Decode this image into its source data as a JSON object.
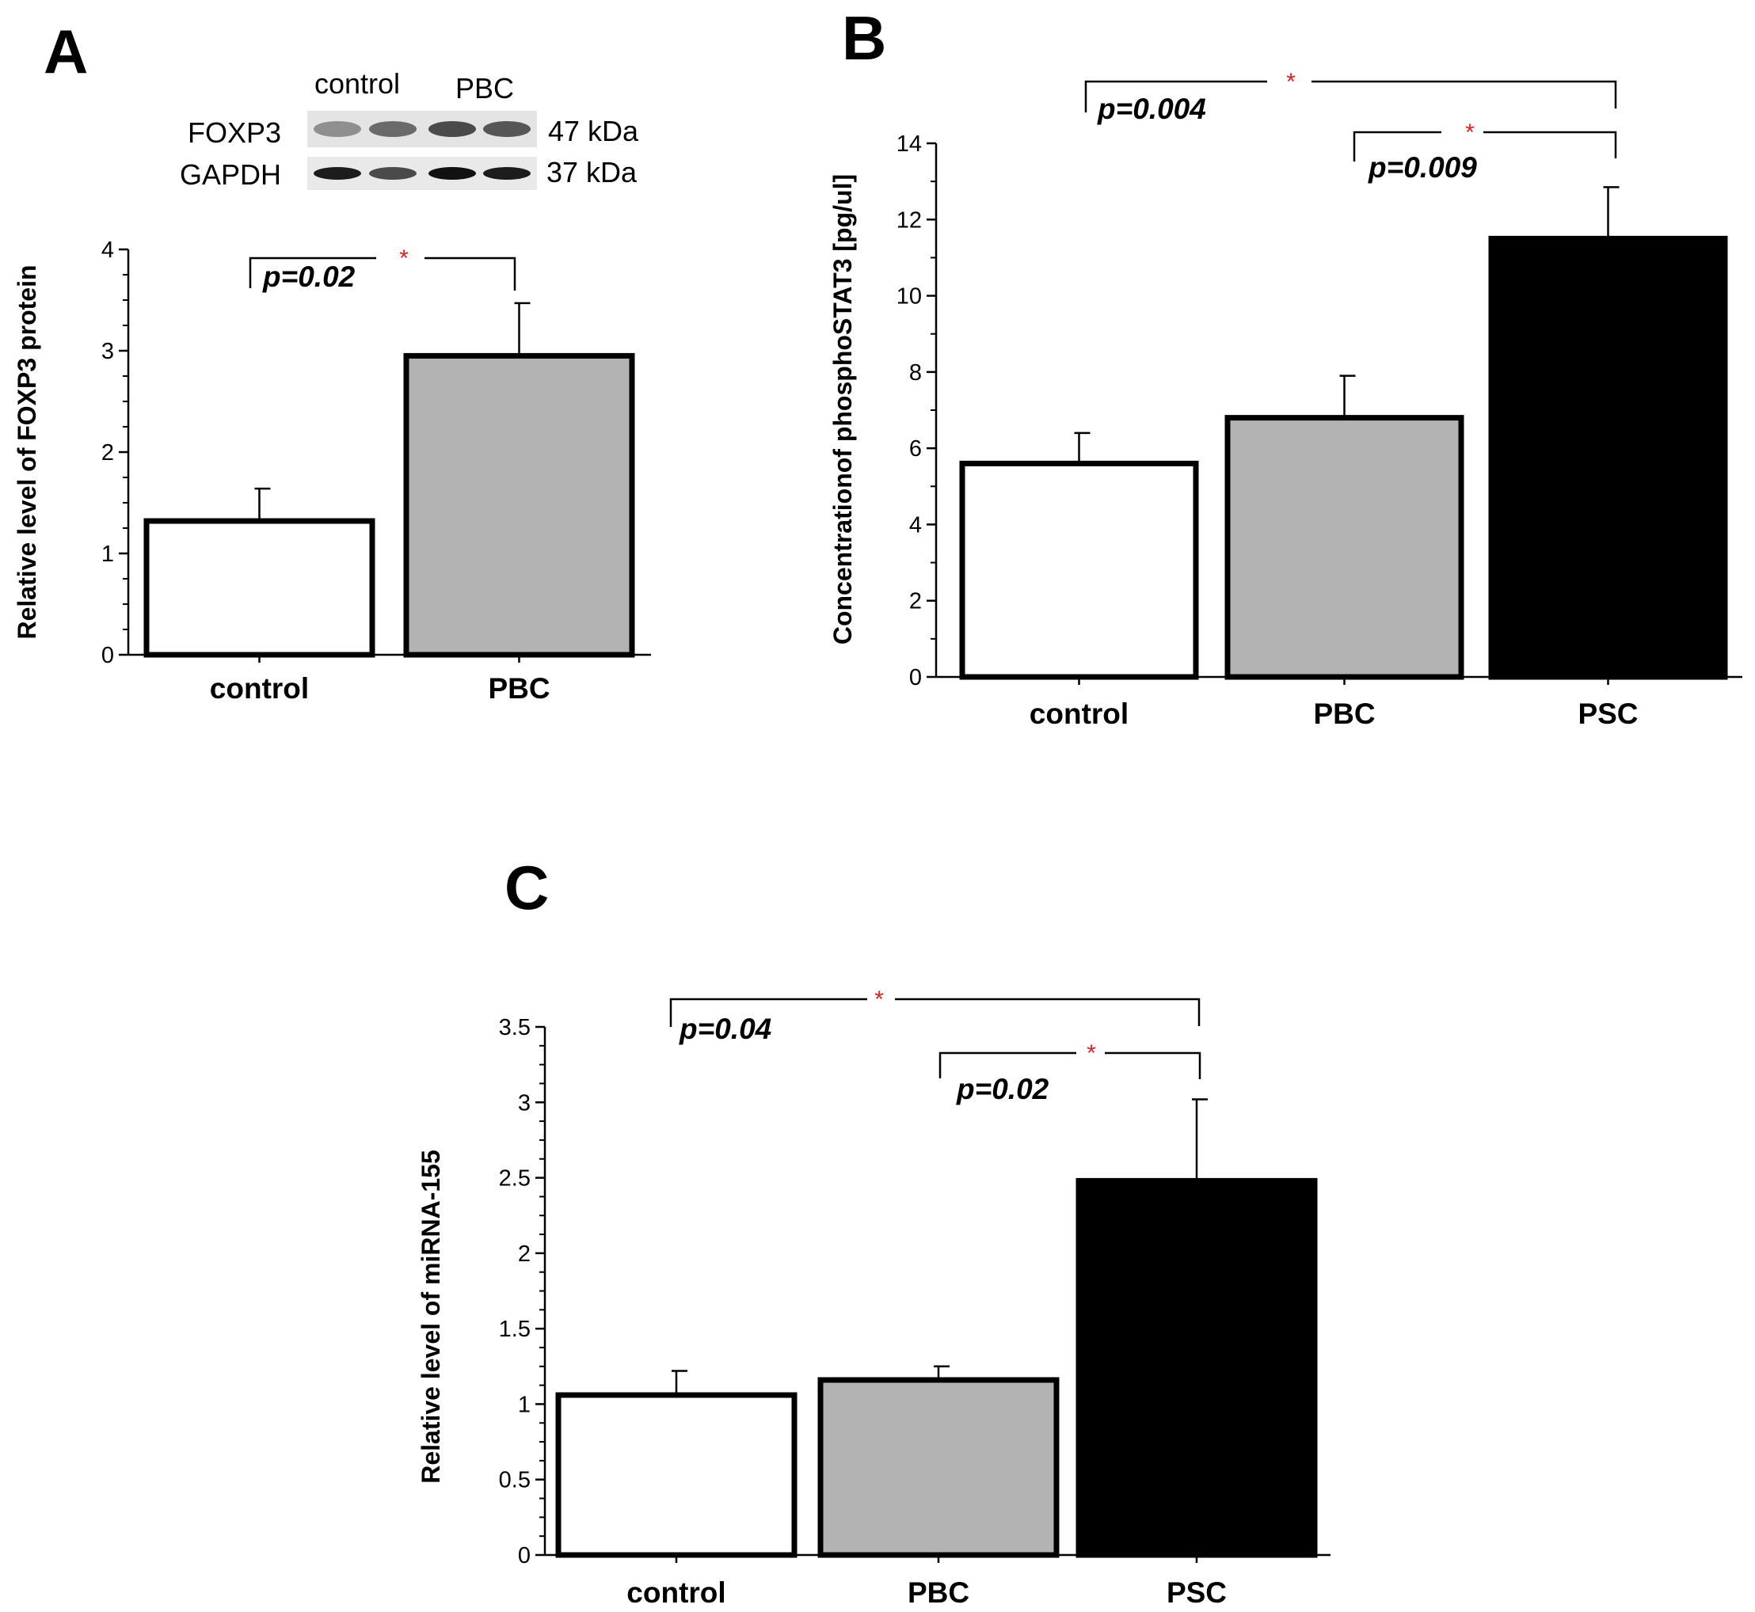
{
  "figure": {
    "blot": {
      "lane_labels": [
        "control",
        "PBC"
      ],
      "rows": [
        {
          "name": "FOXP3",
          "size": "47 kDa",
          "band_colors": [
            "#8f8f8f",
            "#6a6a6a",
            "#4a4a4a",
            "#565656"
          ]
        },
        {
          "name": "GAPDH",
          "size": "37 kDa",
          "band_colors": [
            "#1c1c1c",
            "#4a4a4a",
            "#111111",
            "#1c1c1c"
          ]
        }
      ]
    }
  },
  "chart_data": [
    {
      "panel": "A",
      "type": "bar",
      "ylabel": "Relative level of FOXP3 protein",
      "ylim": [
        0,
        4
      ],
      "yticks": [
        "0",
        "1",
        "2",
        "3",
        "4"
      ],
      "categories": [
        "control",
        "PBC"
      ],
      "values": [
        1.32,
        2.95
      ],
      "errors": [
        0.32,
        0.52
      ],
      "colors": [
        "#ffffff",
        "#b3b3b3"
      ],
      "comparisons": [
        {
          "from": 0,
          "to": 1,
          "p": "p=0.02",
          "star": "*"
        }
      ]
    },
    {
      "panel": "B",
      "type": "bar",
      "ylabel": "Concentrationof  phosphoSTAT3 [pg/ul]",
      "ylim": [
        0,
        14
      ],
      "yticks": [
        "0",
        "2",
        "4",
        "6",
        "8",
        "10",
        "12",
        "14"
      ],
      "categories": [
        "control",
        "PBC",
        "PSC"
      ],
      "values": [
        5.6,
        6.8,
        11.5
      ],
      "errors": [
        0.8,
        1.1,
        1.35
      ],
      "colors": [
        "#ffffff",
        "#b3b3b3",
        "#000000"
      ],
      "comparisons": [
        {
          "from": 0,
          "to": 2,
          "p": "p=0.004",
          "star": "*"
        },
        {
          "from": 1,
          "to": 2,
          "p": "p=0.009",
          "star": "*"
        }
      ]
    },
    {
      "panel": "C",
      "type": "bar",
      "ylabel": "Relative level of miRNA-155",
      "ylim": [
        0,
        3.5
      ],
      "yticks": [
        "0",
        "0.5",
        "1",
        "1.5",
        "2",
        "2.5",
        "3",
        "3.5"
      ],
      "categories": [
        "control",
        "PBC",
        "PSC"
      ],
      "values": [
        1.06,
        1.16,
        2.48
      ],
      "errors": [
        0.16,
        0.09,
        0.54
      ],
      "colors": [
        "#ffffff",
        "#b3b3b3",
        "#000000"
      ],
      "comparisons": [
        {
          "from": 0,
          "to": 2,
          "p": "p=0.04",
          "star": "*"
        },
        {
          "from": 1,
          "to": 2,
          "p": "p=0.02",
          "star": "*"
        }
      ]
    }
  ]
}
